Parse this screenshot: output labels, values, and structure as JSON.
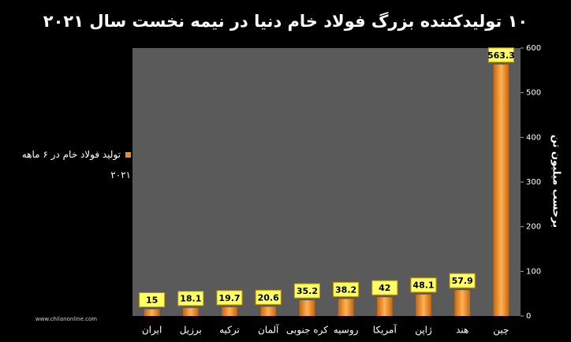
{
  "chart_data": {
    "type": "bar",
    "title": "۱۰ تولیدکننده بزرگ فولاد خام دنیا در نیمه نخست سال ۲۰۲۱",
    "y_axis_label": "برحسب میلیون تن",
    "categories": [
      "ایران",
      "برزیل",
      "ترکیه",
      "آلمان",
      "کره جنوبی",
      "روسیه",
      "آمریکا",
      "ژاپن",
      "هند",
      "چین"
    ],
    "series": [
      {
        "name": "تولید فولاد خام در ۶ ماهه ۲۰۲۱",
        "color": "#f08a1c",
        "values": [
          15,
          18.1,
          19.7,
          20.6,
          35.2,
          38.2,
          42,
          48.1,
          57.9,
          563.3
        ]
      }
    ],
    "ylim": [
      0,
      600
    ],
    "yticks": [
      0,
      100,
      200,
      300,
      400,
      500,
      600
    ],
    "grid": false,
    "legend": "left",
    "watermark": "www.chilanonline.com"
  }
}
